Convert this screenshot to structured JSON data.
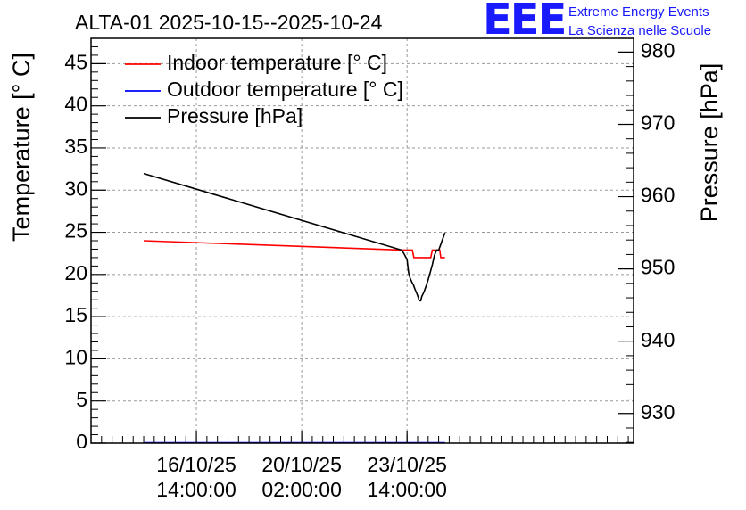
{
  "logo": {
    "mark": "EEE",
    "line1": "Extreme Energy Events",
    "line2": "La Scienza nelle Scuole",
    "color": "#1a1aff"
  },
  "chart_data": {
    "type": "line",
    "title": "ALTA-01 2025-10-15--2025-10-24",
    "ylabel": "Temperature [° C]",
    "y2label": "Pressure [hPa]",
    "ylim": [
      0,
      48
    ],
    "y2lim": [
      925.9,
      981.9
    ],
    "xlim": [
      0,
      10.3
    ],
    "xticks": [
      {
        "x": 2.0,
        "line1": "16/10/25",
        "line2": "14:00:00"
      },
      {
        "x": 4.0,
        "line1": "20/10/25",
        "line2": "02:00:00"
      },
      {
        "x": 6.0,
        "line1": "23/10/25",
        "line2": "14:00:00"
      }
    ],
    "yticks": [
      0,
      5,
      10,
      15,
      20,
      25,
      30,
      35,
      40,
      45
    ],
    "y2ticks": [
      930,
      940,
      950,
      960,
      970,
      980
    ],
    "grid": true,
    "legend_position": "top-left",
    "series": [
      {
        "name": "Indoor temperature [° C]",
        "color": "#ff0000",
        "axis": "left",
        "points": [
          [
            1.0,
            24.0
          ],
          [
            5.9,
            22.9
          ],
          [
            6.1,
            22.9
          ],
          [
            6.13,
            22.0
          ],
          [
            6.45,
            22.0
          ],
          [
            6.48,
            22.9
          ],
          [
            6.62,
            22.9
          ],
          [
            6.64,
            22.0
          ],
          [
            6.72,
            22.0
          ]
        ]
      },
      {
        "name": "Outdoor temperature [° C]",
        "color": "#0000ff",
        "axis": "left",
        "points": [
          [
            1.0,
            0.05
          ],
          [
            6.72,
            0.05
          ]
        ]
      },
      {
        "name": "Pressure [hPa]",
        "color": "#000000",
        "axis": "right",
        "points": [
          [
            1.0,
            963.2
          ],
          [
            5.9,
            952.6
          ],
          [
            5.95,
            952.0
          ],
          [
            6.0,
            951.3
          ],
          [
            6.03,
            949.5
          ],
          [
            6.06,
            948.7
          ],
          [
            6.09,
            948.2
          ],
          [
            6.12,
            947.8
          ],
          [
            6.15,
            947.2
          ],
          [
            6.18,
            946.7
          ],
          [
            6.21,
            946.1
          ],
          [
            6.23,
            945.6
          ],
          [
            6.26,
            945.6
          ],
          [
            6.28,
            946.2
          ],
          [
            6.32,
            946.8
          ],
          [
            6.36,
            947.6
          ],
          [
            6.4,
            948.5
          ],
          [
            6.44,
            949.5
          ],
          [
            6.48,
            950.6
          ],
          [
            6.52,
            951.9
          ],
          [
            6.56,
            952.6
          ],
          [
            6.6,
            952.6
          ],
          [
            6.63,
            953.2
          ],
          [
            6.67,
            954.0
          ],
          [
            6.7,
            954.6
          ],
          [
            6.72,
            955.0
          ]
        ]
      }
    ]
  }
}
